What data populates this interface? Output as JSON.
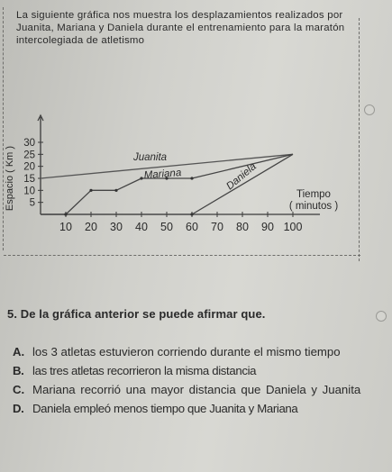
{
  "intro_text": "La siguiente gráfica nos muestra los desplazamientos realizados por Juanita, Mariana y Daniela durante el entrenamiento para la maratón intercolegiada de atletismo",
  "chart_data": {
    "type": "line",
    "xlabel": "Tiempo ( minutos )",
    "xlabel_line1": "Tiempo",
    "xlabel_line2": "( minutos )",
    "ylabel": "Espacio ( Km )",
    "x_ticks": [
      10,
      20,
      30,
      40,
      50,
      60,
      70,
      80,
      90,
      100
    ],
    "y_ticks": [
      5,
      10,
      15,
      20,
      25,
      30
    ],
    "xlim": [
      0,
      100
    ],
    "ylim": [
      0,
      30
    ],
    "grid": false,
    "series": [
      {
        "name": "Juanita",
        "x": [
          0,
          100
        ],
        "y": [
          15,
          25
        ]
      },
      {
        "name": "Mariana",
        "x": [
          0,
          10,
          20,
          30,
          40,
          50,
          60,
          100
        ],
        "y": [
          0,
          0,
          10,
          10,
          15,
          15,
          15,
          25
        ]
      },
      {
        "name": "Daniela",
        "x": [
          0,
          10,
          60,
          100
        ],
        "y": [
          0,
          0,
          0,
          25
        ]
      }
    ]
  },
  "question": {
    "number": "5.",
    "text": "De la gráfica anterior se puede afirmar que."
  },
  "options": [
    {
      "letter": "A.",
      "text": "los 3 atletas estuvieron corriendo durante el mismo tiempo"
    },
    {
      "letter": "B.",
      "text": "las tres atletas recorrieron la misma distancia"
    },
    {
      "letter": "C.",
      "text": "Mariana recorrió una mayor distancia que Daniela y Juanita"
    },
    {
      "letter": "D.",
      "text": "Daniela empleó menos tiempo que Juanita y Mariana"
    }
  ]
}
